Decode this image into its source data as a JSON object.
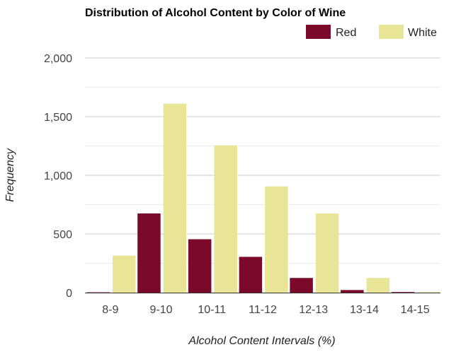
{
  "chart_data": {
    "type": "bar",
    "title": "Distribution of Alcohol Content by Color of Wine",
    "xlabel": "Alcohol Content Intervals (%)",
    "ylabel": "Frequency",
    "categories": [
      "8-9",
      "9-10",
      "10-11",
      "11-12",
      "12-13",
      "13-14",
      "14-15"
    ],
    "series": [
      {
        "name": "Red",
        "color": "#7b0a2a",
        "values": [
          3,
          675,
          455,
          305,
          125,
          22,
          5
        ]
      },
      {
        "name": "White",
        "color": "#e8e596",
        "values": [
          315,
          1610,
          1255,
          905,
          675,
          125,
          5
        ]
      }
    ],
    "ylim": [
      0,
      2000
    ],
    "yticks": [
      0,
      500,
      1000,
      1500,
      2000
    ],
    "ytick_labels": [
      "0",
      "500",
      "1,000",
      "1,500",
      "2,000"
    ],
    "grid": true,
    "legend_position": "top-right"
  }
}
